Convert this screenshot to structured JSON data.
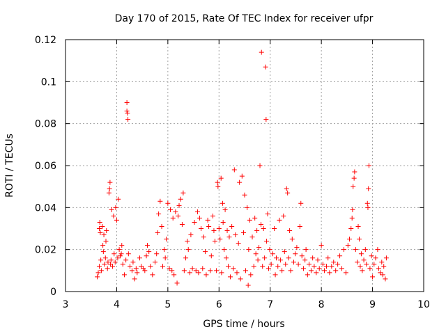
{
  "chart_data": {
    "type": "scatter",
    "title": "Day 170 of 2015, Rate Of TEC Index for receiver ufpr",
    "xlabel": "GPS time / hours",
    "ylabel": "ROTI / TECUs",
    "xlim": [
      3,
      10
    ],
    "ylim": [
      0,
      0.12
    ],
    "xticks": [
      "3",
      "4",
      "5",
      "6",
      "7",
      "8",
      "9",
      "10"
    ],
    "yticks": [
      "0",
      "0.02",
      "0.04",
      "0.06",
      "0.08",
      "0.1",
      "0.12"
    ],
    "xtick_values": [
      3,
      4,
      5,
      6,
      7,
      8,
      9,
      10
    ],
    "ytick_values": [
      0,
      0.02,
      0.04,
      0.06,
      0.08,
      0.1,
      0.12
    ],
    "grid": true,
    "marker": "+",
    "color": "#ff0000",
    "series": [
      {
        "name": "ROTI",
        "points": [
          [
            3.62,
            0.007
          ],
          [
            3.64,
            0.009
          ],
          [
            3.66,
            0.012
          ],
          [
            3.66,
            0.03
          ],
          [
            3.67,
            0.033
          ],
          [
            3.68,
            0.028
          ],
          [
            3.69,
            0.015
          ],
          [
            3.7,
            0.01
          ],
          [
            3.72,
            0.031
          ],
          [
            3.73,
            0.022
          ],
          [
            3.74,
            0.019
          ],
          [
            3.75,
            0.027
          ],
          [
            3.76,
            0.013
          ],
          [
            3.78,
            0.016
          ],
          [
            3.79,
            0.024
          ],
          [
            3.8,
            0.029
          ],
          [
            3.82,
            0.011
          ],
          [
            3.83,
            0.014
          ],
          [
            3.85,
            0.047
          ],
          [
            3.86,
            0.049
          ],
          [
            3.87,
            0.052
          ],
          [
            3.88,
            0.013
          ],
          [
            3.89,
            0.015
          ],
          [
            3.9,
            0.039
          ],
          [
            3.92,
            0.012
          ],
          [
            3.94,
            0.036
          ],
          [
            3.95,
            0.018
          ],
          [
            3.97,
            0.014
          ],
          [
            3.98,
            0.04
          ],
          [
            4.0,
            0.034
          ],
          [
            4.02,
            0.016
          ],
          [
            4.03,
            0.044
          ],
          [
            4.05,
            0.02
          ],
          [
            4.07,
            0.017
          ],
          [
            4.09,
            0.018
          ],
          [
            4.1,
            0.022
          ],
          [
            4.12,
            0.013
          ],
          [
            4.15,
            0.008
          ],
          [
            4.18,
            0.015
          ],
          [
            4.2,
            0.09
          ],
          [
            4.2,
            0.086
          ],
          [
            4.21,
            0.085
          ],
          [
            4.22,
            0.082
          ],
          [
            4.23,
            0.018
          ],
          [
            4.26,
            0.012
          ],
          [
            4.3,
            0.01
          ],
          [
            4.32,
            0.014
          ],
          [
            4.35,
            0.006
          ],
          [
            4.38,
            0.011
          ],
          [
            4.4,
            0.009
          ],
          [
            4.45,
            0.016
          ],
          [
            4.48,
            0.012
          ],
          [
            4.52,
            0.011
          ],
          [
            4.55,
            0.01
          ],
          [
            4.58,
            0.017
          ],
          [
            4.6,
            0.022
          ],
          [
            4.63,
            0.019
          ],
          [
            4.66,
            0.012
          ],
          [
            4.7,
            0.008
          ],
          [
            4.75,
            0.014
          ],
          [
            4.78,
            0.018
          ],
          [
            4.8,
            0.028
          ],
          [
            4.82,
            0.037
          ],
          [
            4.85,
            0.043
          ],
          [
            4.88,
            0.031
          ],
          [
            4.9,
            0.012
          ],
          [
            4.93,
            0.02
          ],
          [
            4.95,
            0.016
          ],
          [
            4.97,
            0.025
          ],
          [
            5.0,
            0.042
          ],
          [
            5.03,
            0.011
          ],
          [
            5.05,
            0.039
          ],
          [
            5.08,
            0.01
          ],
          [
            5.1,
            0.035
          ],
          [
            5.12,
            0.008
          ],
          [
            5.15,
            0.038
          ],
          [
            5.18,
            0.004
          ],
          [
            5.2,
            0.036
          ],
          [
            5.22,
            0.041
          ],
          [
            5.25,
            0.044
          ],
          [
            5.28,
            0.032
          ],
          [
            5.3,
            0.047
          ],
          [
            5.32,
            0.01
          ],
          [
            5.35,
            0.016
          ],
          [
            5.38,
            0.024
          ],
          [
            5.4,
            0.02
          ],
          [
            5.43,
            0.009
          ],
          [
            5.45,
            0.027
          ],
          [
            5.48,
            0.011
          ],
          [
            5.52,
            0.033
          ],
          [
            5.55,
            0.01
          ],
          [
            5.58,
            0.038
          ],
          [
            5.6,
            0.009
          ],
          [
            5.62,
            0.035
          ],
          [
            5.65,
            0.03
          ],
          [
            5.68,
            0.011
          ],
          [
            5.7,
            0.026
          ],
          [
            5.73,
            0.019
          ],
          [
            5.75,
            0.008
          ],
          [
            5.78,
            0.034
          ],
          [
            5.8,
            0.031
          ],
          [
            5.83,
            0.01
          ],
          [
            5.85,
            0.017
          ],
          [
            5.88,
            0.036
          ],
          [
            5.9,
            0.029
          ],
          [
            5.92,
            0.024
          ],
          [
            5.95,
            0.01
          ],
          [
            5.97,
            0.052
          ],
          [
            5.98,
            0.05
          ],
          [
            6.0,
            0.03
          ],
          [
            6.02,
            0.025
          ],
          [
            6.04,
            0.054
          ],
          [
            6.05,
            0.009
          ],
          [
            6.07,
            0.042
          ],
          [
            6.08,
            0.033
          ],
          [
            6.1,
            0.02
          ],
          [
            6.12,
            0.039
          ],
          [
            6.14,
            0.016
          ],
          [
            6.16,
            0.029
          ],
          [
            6.18,
            0.012
          ],
          [
            6.2,
            0.026
          ],
          [
            6.22,
            0.007
          ],
          [
            6.25,
            0.031
          ],
          [
            6.28,
            0.011
          ],
          [
            6.3,
            0.058
          ],
          [
            6.32,
            0.027
          ],
          [
            6.35,
            0.009
          ],
          [
            6.38,
            0.023
          ],
          [
            6.4,
            0.052
          ],
          [
            6.42,
            0.006
          ],
          [
            6.45,
            0.055
          ],
          [
            6.48,
            0.028
          ],
          [
            6.5,
            0.046
          ],
          [
            6.52,
            0.01
          ],
          [
            6.55,
            0.04
          ],
          [
            6.57,
            0.003
          ],
          [
            6.58,
            0.02
          ],
          [
            6.6,
            0.034
          ],
          [
            6.62,
            0.008
          ],
          [
            6.65,
            0.026
          ],
          [
            6.68,
            0.012
          ],
          [
            6.7,
            0.035
          ],
          [
            6.72,
            0.018
          ],
          [
            6.74,
            0.029
          ],
          [
            6.76,
            0.015
          ],
          [
            6.78,
            0.021
          ],
          [
            6.8,
            0.06
          ],
          [
            6.82,
            0.032
          ],
          [
            6.83,
            0.114
          ],
          [
            6.85,
            0.012
          ],
          [
            6.87,
            0.03
          ],
          [
            6.89,
            0.016
          ],
          [
            6.91,
            0.107
          ],
          [
            6.92,
            0.082
          ],
          [
            6.93,
            0.024
          ],
          [
            6.95,
            0.037
          ],
          [
            6.97,
            0.011
          ],
          [
            6.99,
            0.02
          ],
          [
            7.02,
            0.013
          ],
          [
            7.05,
            0.018
          ],
          [
            7.08,
            0.03
          ],
          [
            7.1,
            0.008
          ],
          [
            7.12,
            0.016
          ],
          [
            7.15,
            0.012
          ],
          [
            7.18,
            0.034
          ],
          [
            7.2,
            0.015
          ],
          [
            7.23,
            0.01
          ],
          [
            7.26,
            0.036
          ],
          [
            7.28,
            0.019
          ],
          [
            7.3,
            0.013
          ],
          [
            7.32,
            0.049
          ],
          [
            7.34,
            0.047
          ],
          [
            7.36,
            0.016
          ],
          [
            7.38,
            0.029
          ],
          [
            7.4,
            0.01
          ],
          [
            7.43,
            0.025
          ],
          [
            7.46,
            0.014
          ],
          [
            7.49,
            0.018
          ],
          [
            7.52,
            0.021
          ],
          [
            7.55,
            0.013
          ],
          [
            7.58,
            0.031
          ],
          [
            7.6,
            0.042
          ],
          [
            7.62,
            0.017
          ],
          [
            7.65,
            0.011
          ],
          [
            7.68,
            0.015
          ],
          [
            7.7,
            0.02
          ],
          [
            7.73,
            0.008
          ],
          [
            7.76,
            0.013
          ],
          [
            7.8,
            0.01
          ],
          [
            7.83,
            0.016
          ],
          [
            7.86,
            0.012
          ],
          [
            7.9,
            0.009
          ],
          [
            7.93,
            0.015
          ],
          [
            7.96,
            0.011
          ],
          [
            8.0,
            0.022
          ],
          [
            8.03,
            0.013
          ],
          [
            8.06,
            0.01
          ],
          [
            8.1,
            0.012
          ],
          [
            8.13,
            0.016
          ],
          [
            8.16,
            0.009
          ],
          [
            8.2,
            0.012
          ],
          [
            8.24,
            0.014
          ],
          [
            8.28,
            0.01
          ],
          [
            8.32,
            0.013
          ],
          [
            8.36,
            0.017
          ],
          [
            8.4,
            0.011
          ],
          [
            8.44,
            0.02
          ],
          [
            8.48,
            0.009
          ],
          [
            8.52,
            0.022
          ],
          [
            8.55,
            0.025
          ],
          [
            8.58,
            0.03
          ],
          [
            8.6,
            0.035
          ],
          [
            8.61,
            0.039
          ],
          [
            8.62,
            0.05
          ],
          [
            8.64,
            0.054
          ],
          [
            8.65,
            0.057
          ],
          [
            8.67,
            0.02
          ],
          [
            8.7,
            0.014
          ],
          [
            8.72,
            0.031
          ],
          [
            8.74,
            0.025
          ],
          [
            8.76,
            0.012
          ],
          [
            8.78,
            0.018
          ],
          [
            8.8,
            0.01
          ],
          [
            8.83,
            0.015
          ],
          [
            8.86,
            0.02
          ],
          [
            8.88,
            0.013
          ],
          [
            8.9,
            0.042
          ],
          [
            8.91,
            0.04
          ],
          [
            8.92,
            0.049
          ],
          [
            8.93,
            0.06
          ],
          [
            8.95,
            0.011
          ],
          [
            8.98,
            0.017
          ],
          [
            9.0,
            0.007
          ],
          [
            9.03,
            0.013
          ],
          [
            9.06,
            0.016
          ],
          [
            9.1,
            0.02
          ],
          [
            9.12,
            0.011
          ],
          [
            9.15,
            0.009
          ],
          [
            9.18,
            0.014
          ],
          [
            9.2,
            0.008
          ],
          [
            9.22,
            0.012
          ],
          [
            9.25,
            0.006
          ],
          [
            9.27,
            0.016
          ]
        ]
      }
    ]
  }
}
